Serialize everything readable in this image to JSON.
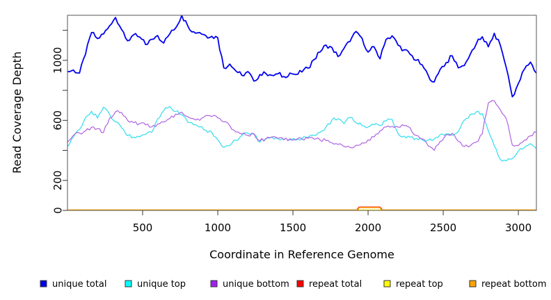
{
  "page": {
    "background": "#ffffff"
  },
  "chart_data": {
    "type": "line",
    "title": "",
    "xlabel": "Coordinate in Reference Genome",
    "ylabel": "Read Coverage Depth",
    "x_range": [
      0,
      3120
    ],
    "y_range": [
      0,
      1300
    ],
    "grid": false,
    "legend_position": "bottom",
    "x_ticks": [
      500,
      1000,
      1500,
      2000,
      2500,
      3000
    ],
    "y_ticks": [
      {
        "v": 0,
        "label": "0"
      },
      {
        "v": 200,
        "label": "200"
      },
      {
        "v": 400,
        "label": ""
      },
      {
        "v": 600,
        "label": "600"
      },
      {
        "v": 800,
        "label": ""
      },
      {
        "v": 1000,
        "label": "1000"
      },
      {
        "v": 1200,
        "label": ""
      }
    ],
    "x": [
      0,
      40,
      80,
      120,
      160,
      200,
      240,
      280,
      320,
      360,
      400,
      440,
      480,
      520,
      560,
      600,
      640,
      680,
      720,
      760,
      800,
      840,
      880,
      920,
      960,
      1000,
      1040,
      1080,
      1120,
      1160,
      1200,
      1240,
      1280,
      1320,
      1360,
      1400,
      1440,
      1480,
      1520,
      1560,
      1600,
      1640,
      1680,
      1720,
      1760,
      1800,
      1840,
      1880,
      1920,
      1960,
      2000,
      2040,
      2080,
      2120,
      2160,
      2200,
      2240,
      2280,
      2320,
      2360,
      2400,
      2440,
      2480,
      2520,
      2560,
      2600,
      2640,
      2680,
      2720,
      2760,
      2800,
      2840,
      2880,
      2920,
      2960,
      3000,
      3040,
      3080,
      3120
    ],
    "series": [
      {
        "name": "unique total",
        "color": "#0000EE",
        "values": [
          925,
          935,
          915,
          1040,
          1185,
          1145,
          1175,
          1230,
          1285,
          1205,
          1130,
          1170,
          1155,
          1105,
          1140,
          1165,
          1115,
          1175,
          1215,
          1300,
          1230,
          1190,
          1185,
          1165,
          1160,
          1150,
          950,
          975,
          930,
          900,
          925,
          862,
          905,
          912,
          900,
          910,
          892,
          915,
          905,
          922,
          948,
          1005,
          1055,
          1102,
          1085,
          1025,
          1080,
          1125,
          1192,
          1148,
          1055,
          1090,
          1010,
          1140,
          1163,
          1100,
          1069,
          1040,
          1000,
          970,
          900,
          856,
          940,
          985,
          1030,
          950,
          965,
          1040,
          1110,
          1157,
          1090,
          1180,
          1100,
          950,
          757,
          845,
          940,
          988,
          915
        ]
      },
      {
        "name": "unique top",
        "color": "#2FDDEE",
        "values": [
          425,
          490,
          540,
          620,
          660,
          615,
          688,
          640,
          590,
          550,
          498,
          488,
          490,
          505,
          520,
          610,
          665,
          693,
          660,
          640,
          588,
          570,
          555,
          535,
          520,
          470,
          420,
          432,
          468,
          500,
          514,
          505,
          455,
          480,
          490,
          480,
          473,
          470,
          468,
          478,
          487,
          500,
          520,
          556,
          602,
          610,
          578,
          618,
          585,
          565,
          556,
          570,
          565,
          595,
          607,
          510,
          495,
          487,
          480,
          470,
          468,
          475,
          505,
          510,
          500,
          525,
          600,
          640,
          657,
          645,
          530,
          430,
          340,
          330,
          345,
          395,
          420,
          445,
          410
        ]
      },
      {
        "name": "unique bottom",
        "color": "#AE62E0",
        "values": [
          455,
          500,
          515,
          530,
          555,
          545,
          520,
          615,
          658,
          652,
          600,
          585,
          578,
          570,
          556,
          575,
          590,
          612,
          642,
          655,
          625,
          610,
          600,
          632,
          625,
          616,
          590,
          565,
          523,
          509,
          500,
          512,
          463,
          478,
          488,
          480,
          470,
          478,
          470,
          475,
          480,
          475,
          470,
          465,
          450,
          440,
          425,
          420,
          435,
          450,
          470,
          490,
          530,
          556,
          560,
          555,
          565,
          550,
          500,
          477,
          430,
          400,
          460,
          505,
          514,
          460,
          425,
          430,
          455,
          510,
          715,
          730,
          670,
          610,
          435,
          432,
          468,
          497,
          520
        ]
      },
      {
        "name": "repeat total",
        "color": "#FF0000",
        "x": [
          0,
          1925,
          1940,
          2080,
          2095,
          3120
        ],
        "values": [
          3,
          3,
          22,
          22,
          3,
          3
        ]
      },
      {
        "name": "repeat top",
        "color": "#FFFF00",
        "x": [
          0,
          3120
        ],
        "values": [
          3,
          3
        ]
      },
      {
        "name": "repeat bottom",
        "color": "#FFA500",
        "x": [
          0,
          1930,
          1942,
          2078,
          2090,
          3120
        ],
        "values": [
          3,
          3,
          19,
          19,
          3,
          3
        ]
      }
    ],
    "legend": [
      {
        "label": "unique total",
        "color": "#0000EE"
      },
      {
        "label": "unique top",
        "color": "#00FFFF"
      },
      {
        "label": "unique bottom",
        "color": "#A020F0"
      },
      {
        "label": "repeat total",
        "color": "#FF0000"
      },
      {
        "label": "repeat top",
        "color": "#FFFF00"
      },
      {
        "label": "repeat bottom",
        "color": "#FFA500"
      }
    ]
  }
}
